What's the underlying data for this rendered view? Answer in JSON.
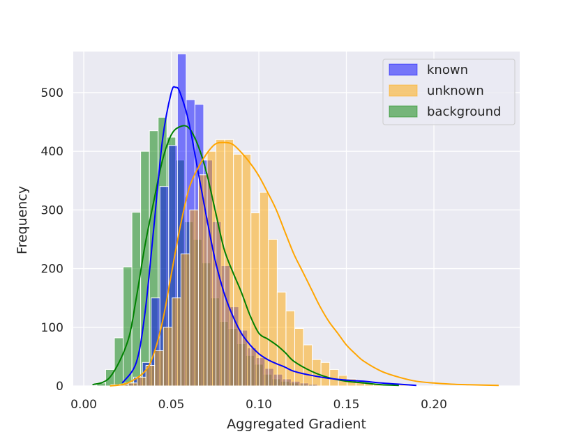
{
  "chart_data": {
    "type": "histogram",
    "title": "",
    "xlabel": "Aggregated Gradient",
    "ylabel": "Frequency",
    "xlim": [
      -0.006,
      0.249
    ],
    "ylim": [
      0,
      570
    ],
    "x_ticks": [
      0.0,
      0.05,
      0.1,
      0.15,
      0.2
    ],
    "x_tick_labels": [
      "0.00",
      "0.05",
      "0.10",
      "0.15",
      "0.20"
    ],
    "y_ticks": [
      0,
      100,
      200,
      300,
      400,
      500
    ],
    "y_tick_labels": [
      "0",
      "100",
      "200",
      "300",
      "400",
      "500"
    ],
    "grid": true,
    "legend_position": "top-right",
    "series": [
      {
        "name": "background",
        "color": "#008000",
        "bins": {
          "start": 0.0075,
          "width": 0.005,
          "counts": [
            5,
            28,
            82,
            203,
            296,
            400,
            435,
            458,
            424,
            385,
            280,
            250,
            210,
            150,
            110,
            98,
            72,
            52,
            37,
            20,
            12,
            8,
            5,
            3,
            2
          ]
        },
        "kde": {
          "x": [
            0.005,
            0.015,
            0.025,
            0.03,
            0.035,
            0.04,
            0.045,
            0.05,
            0.055,
            0.06,
            0.065,
            0.07,
            0.075,
            0.08,
            0.085,
            0.09,
            0.095,
            0.1,
            0.105,
            0.11,
            0.115,
            0.12,
            0.13,
            0.14,
            0.15,
            0.16,
            0.17,
            0.18
          ],
          "y": [
            2,
            15,
            75,
            150,
            240,
            315,
            385,
            428,
            442,
            440,
            412,
            365,
            300,
            235,
            195,
            160,
            120,
            90,
            80,
            70,
            57,
            42,
            25,
            14,
            8,
            5,
            2,
            1
          ]
        }
      },
      {
        "name": "known",
        "color": "#0000ff",
        "bins": {
          "start": 0.0235,
          "width": 0.005,
          "counts": [
            5,
            15,
            40,
            150,
            340,
            410,
            566,
            488,
            480,
            385,
            280,
            205,
            135,
            95,
            65,
            48,
            30,
            20,
            12,
            8,
            5,
            3
          ]
        },
        "kde": {
          "x": [
            0.022,
            0.03,
            0.035,
            0.04,
            0.045,
            0.05,
            0.0525,
            0.055,
            0.06,
            0.065,
            0.07,
            0.075,
            0.08,
            0.085,
            0.09,
            0.095,
            0.1,
            0.105,
            0.11,
            0.115,
            0.12,
            0.13,
            0.14,
            0.15,
            0.16,
            0.17,
            0.18,
            0.19
          ],
          "y": [
            5,
            40,
            125,
            270,
            420,
            500,
            509,
            500,
            450,
            370,
            290,
            215,
            160,
            120,
            90,
            70,
            55,
            45,
            38,
            32,
            25,
            18,
            13,
            10,
            8,
            5,
            3,
            1
          ]
        }
      },
      {
        "name": "unknown",
        "color": "#ffa500",
        "bins": {
          "start": 0.0155,
          "width": 0.005,
          "counts": [
            2,
            3,
            5,
            15,
            35,
            60,
            100,
            150,
            225,
            300,
            360,
            400,
            420,
            420,
            395,
            395,
            295,
            330,
            250,
            160,
            128,
            98,
            70,
            45,
            40,
            28,
            18,
            12,
            8,
            5,
            4,
            3,
            2,
            2,
            1
          ]
        },
        "kde": {
          "x": [
            0.015,
            0.025,
            0.035,
            0.04,
            0.045,
            0.05,
            0.055,
            0.06,
            0.065,
            0.07,
            0.075,
            0.08,
            0.085,
            0.09,
            0.095,
            0.1,
            0.105,
            0.11,
            0.115,
            0.12,
            0.125,
            0.13,
            0.135,
            0.14,
            0.145,
            0.15,
            0.155,
            0.16,
            0.17,
            0.18,
            0.19,
            0.2,
            0.21,
            0.22,
            0.237
          ],
          "y": [
            0,
            5,
            25,
            55,
            110,
            190,
            270,
            335,
            370,
            395,
            412,
            415,
            412,
            398,
            380,
            358,
            330,
            300,
            262,
            225,
            195,
            165,
            135,
            110,
            90,
            70,
            55,
            42,
            25,
            15,
            8,
            5,
            3,
            2,
            1
          ]
        }
      }
    ]
  }
}
